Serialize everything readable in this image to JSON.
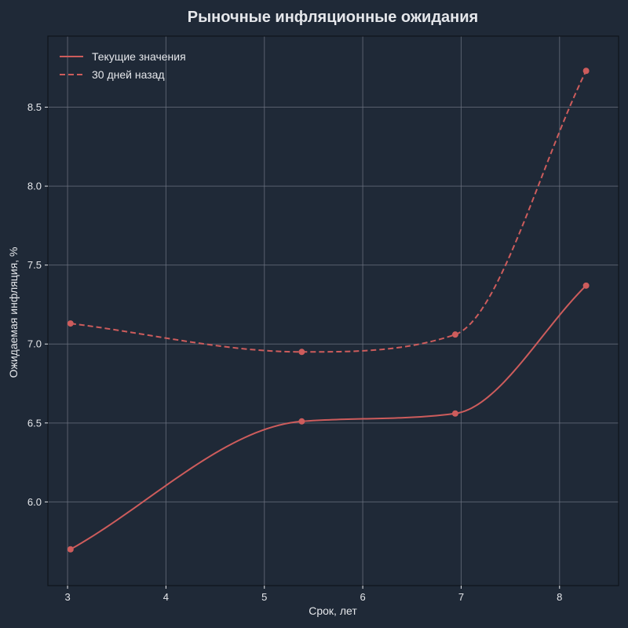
{
  "chart_data": {
    "type": "line",
    "title": "Рыночные инфляционные ожидания",
    "xlabel": "Срок, лет",
    "ylabel": "Ожидаемая инфляция, %",
    "xlim": [
      2.8,
      8.6
    ],
    "ylim": [
      5.47,
      8.95
    ],
    "xticks": [
      3,
      4,
      5,
      6,
      7,
      8
    ],
    "yticks": [
      6.0,
      6.5,
      7.0,
      7.5,
      8.0,
      8.5
    ],
    "xtick_labels": [
      "3",
      "4",
      "5",
      "6",
      "7",
      "8"
    ],
    "ytick_labels": [
      "6.0",
      "6.5",
      "7.0",
      "7.5",
      "8.0",
      "8.5"
    ],
    "grid": true,
    "legend_position": "top-left",
    "series": [
      {
        "name": "Текущие значения",
        "style": "solid",
        "color": "#cd5c5c",
        "points": [
          {
            "x": 3.03,
            "y": 5.7
          },
          {
            "x": 5.38,
            "y": 6.51
          },
          {
            "x": 6.94,
            "y": 6.56
          },
          {
            "x": 8.27,
            "y": 7.37
          }
        ]
      },
      {
        "name": "30 дней назад",
        "style": "dashed",
        "color": "#cd5c5c",
        "points": [
          {
            "x": 3.03,
            "y": 7.13
          },
          {
            "x": 5.38,
            "y": 6.95
          },
          {
            "x": 6.94,
            "y": 7.06
          },
          {
            "x": 8.27,
            "y": 8.73
          }
        ]
      }
    ]
  },
  "colors": {
    "background": "#1f2937",
    "text": "#e5e7eb",
    "grid": "#6b7280",
    "series": "#cd5c5c"
  }
}
